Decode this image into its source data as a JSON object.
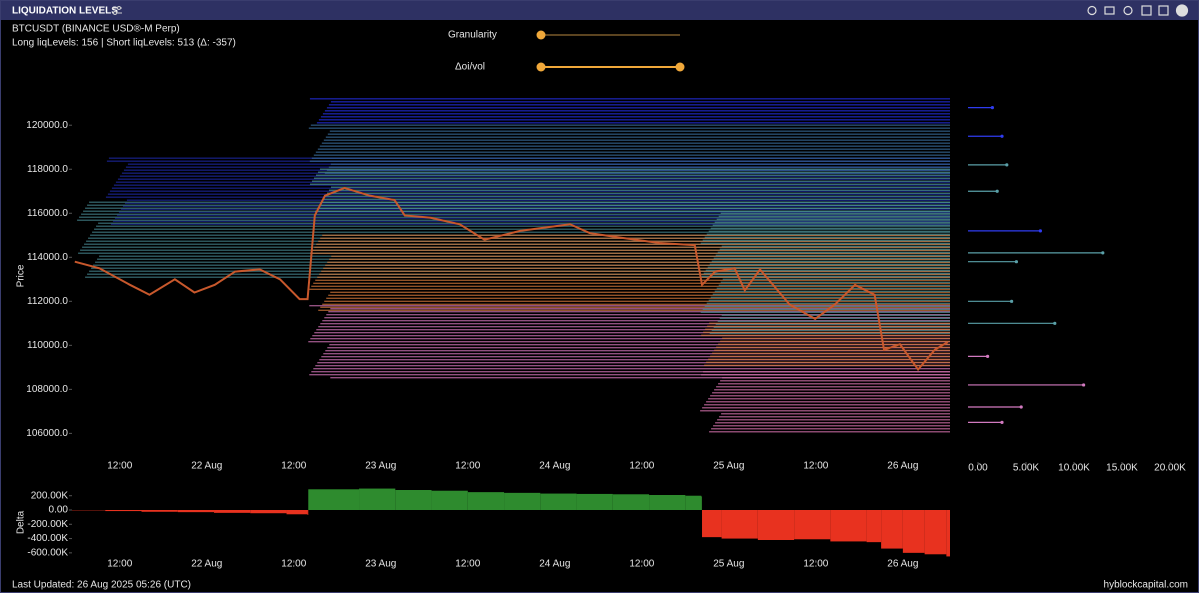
{
  "header": {
    "title": "LIQUIDATION LEVELS"
  },
  "info": {
    "symbol": "BTCUSDT (BINANCE USD®-M Perp)",
    "counts": "Long liqLevels: 156 | Short liqLevels: 513 (Δ: -357)"
  },
  "controls": {
    "granularity": "Granularity",
    "oi_vol": "Δoi/vol"
  },
  "footer": {
    "updated": "Last Updated: 26 Aug 2025 05:26 (UTC)",
    "source": "hyblockcapital.com"
  },
  "chart_data": [
    {
      "type": "line",
      "y_label": "Price",
      "color": "#c8582c",
      "x": [
        5.8,
        9.2,
        13.4,
        16.1,
        19.6,
        22.3,
        25.1,
        27.9,
        31.3,
        34.1,
        36.8,
        37.9,
        38.9,
        40.3,
        43.0,
        46.5,
        49.9,
        51.3,
        54.8,
        58.9,
        62.3,
        67.2,
        74.1,
        76.8,
        80.9,
        86.4,
        91.3,
        92.3,
        94.1,
        96.8,
        98.2,
        100.3,
        104.4,
        107.9,
        110.6,
        113.4,
        116.1,
        117.4,
        119.6,
        122.1,
        124.4,
        126.2
      ],
      "values": [
        113800,
        113500,
        112750,
        112300,
        113000,
        112400,
        112750,
        113350,
        113450,
        113000,
        112100,
        112100,
        115900,
        116800,
        117150,
        116800,
        116600,
        115900,
        115800,
        115500,
        114800,
        115200,
        115500,
        115100,
        114900,
        114650,
        114550,
        112750,
        113350,
        113500,
        112500,
        113450,
        111850,
        111200,
        111850,
        112750,
        112300,
        109800,
        110050,
        108900,
        109800,
        110150
      ],
      "levels": [
        {
          "low": 115500,
          "high": 118500,
          "start": 10,
          "color": "#1e2aa8"
        },
        {
          "low": 113000,
          "high": 116500,
          "start": 6,
          "color": "#3f7a82"
        },
        {
          "low": 117800,
          "high": 120000,
          "start": 38,
          "color": "#3a6fa0"
        },
        {
          "low": 120000,
          "high": 121200,
          "start": 38,
          "color": "#2430e8"
        },
        {
          "low": 116000,
          "high": 118000,
          "start": 38,
          "color": "#4b9096"
        },
        {
          "low": 111500,
          "high": 115000,
          "start": 38,
          "color": "#d2773a"
        },
        {
          "low": 108500,
          "high": 111800,
          "start": 38,
          "color": "#d274b8"
        },
        {
          "low": 110500,
          "high": 116000,
          "start": 92,
          "color": "#4e8f95"
        },
        {
          "low": 109000,
          "high": 111000,
          "start": 92,
          "color": "#d2773a"
        },
        {
          "low": 106000,
          "high": 108800,
          "start": 92,
          "color": "#c66aa2"
        }
      ],
      "xlim": [
        5,
        126.5
      ],
      "ylim": [
        104700,
        121600
      ],
      "xticks": [
        {
          "value": 12,
          "label": "12:00"
        },
        {
          "value": 24,
          "label": "22 Aug"
        },
        {
          "value": 36,
          "label": "12:00"
        },
        {
          "value": 48,
          "label": "23 Aug"
        },
        {
          "value": 60,
          "label": "12:00"
        },
        {
          "value": 72,
          "label": "24 Aug"
        },
        {
          "value": 84,
          "label": "12:00"
        },
        {
          "value": 96,
          "label": "25 Aug"
        },
        {
          "value": 108,
          "label": "12:00"
        },
        {
          "value": 120,
          "label": "26 Aug"
        }
      ],
      "yticks": [
        {
          "value": 106000,
          "label": "106000.0"
        },
        {
          "value": 108000,
          "label": "108000.0"
        },
        {
          "value": 110000,
          "label": "110000.0"
        },
        {
          "value": 112000,
          "label": "112000.0"
        },
        {
          "value": 114000,
          "label": "114000.0"
        },
        {
          "value": 116000,
          "label": "116000.0"
        },
        {
          "value": 118000,
          "label": "118000.0"
        },
        {
          "value": 120000,
          "label": "120000.0"
        }
      ]
    },
    {
      "type": "hbar",
      "y": [
        120800,
        119500,
        118200,
        117000,
        115200,
        114200,
        113800,
        112000,
        111000,
        109500,
        108200,
        107200,
        106500
      ],
      "values": [
        1500,
        2500,
        3000,
        2000,
        6500,
        13000,
        4000,
        3500,
        8000,
        1000,
        11000,
        4500,
        2500
      ],
      "colors": [
        "#2f3cf0",
        "#2f3cf0",
        "#5aa0a8",
        "#5aa0a8",
        "#2f3cf0",
        "#5aa0a8",
        "#5aa0a8",
        "#5aa0a8",
        "#5aa0a8",
        "#d27ac0",
        "#d27ac0",
        "#d27ac0",
        "#d27ac0"
      ],
      "xlim": [
        0,
        20000
      ],
      "ylim": [
        104700,
        121600
      ],
      "xticks": [
        {
          "value": 0,
          "label": "0.00"
        },
        {
          "value": 5000,
          "label": "5.00K"
        },
        {
          "value": 10000,
          "label": "10.00K"
        },
        {
          "value": 15000,
          "label": "15.00K"
        },
        {
          "value": 20000,
          "label": "20.00K"
        }
      ]
    },
    {
      "type": "step",
      "y_label": "Delta",
      "positive_color": "#2e8b2e",
      "negative_color": "#e8321f",
      "x": [
        5,
        10,
        15,
        20,
        25,
        30,
        35,
        37.9,
        38,
        45,
        50,
        55,
        60,
        65,
        70,
        75,
        80,
        85,
        90,
        92.2,
        92.3,
        95,
        100,
        105,
        110,
        115,
        117,
        120,
        123,
        126
      ],
      "values": [
        -5000,
        -15000,
        -25000,
        -30000,
        -40000,
        -45000,
        -60000,
        -70000,
        290000,
        300000,
        280000,
        270000,
        250000,
        240000,
        230000,
        225000,
        220000,
        210000,
        200000,
        190000,
        -380000,
        -400000,
        -420000,
        -410000,
        -440000,
        -450000,
        -540000,
        -600000,
        -620000,
        -650000
      ],
      "xlim": [
        5,
        126.5
      ],
      "ylim": [
        -700000,
        350000
      ],
      "xticks": [
        {
          "value": 12,
          "label": "12:00"
        },
        {
          "value": 24,
          "label": "22 Aug"
        },
        {
          "value": 36,
          "label": "12:00"
        },
        {
          "value": 48,
          "label": "23 Aug"
        },
        {
          "value": 60,
          "label": "12:00"
        },
        {
          "value": 72,
          "label": "24 Aug"
        },
        {
          "value": 84,
          "label": "12:00"
        },
        {
          "value": 96,
          "label": "25 Aug"
        },
        {
          "value": 108,
          "label": "12:00"
        },
        {
          "value": 120,
          "label": "26 Aug"
        }
      ],
      "yticks": [
        {
          "value": -600000,
          "label": "-600.00K"
        },
        {
          "value": -400000,
          "label": "-400.00K"
        },
        {
          "value": -200000,
          "label": "-200.00K"
        },
        {
          "value": 0,
          "label": "0.00"
        },
        {
          "value": 200000,
          "label": "200.00K"
        }
      ]
    }
  ]
}
